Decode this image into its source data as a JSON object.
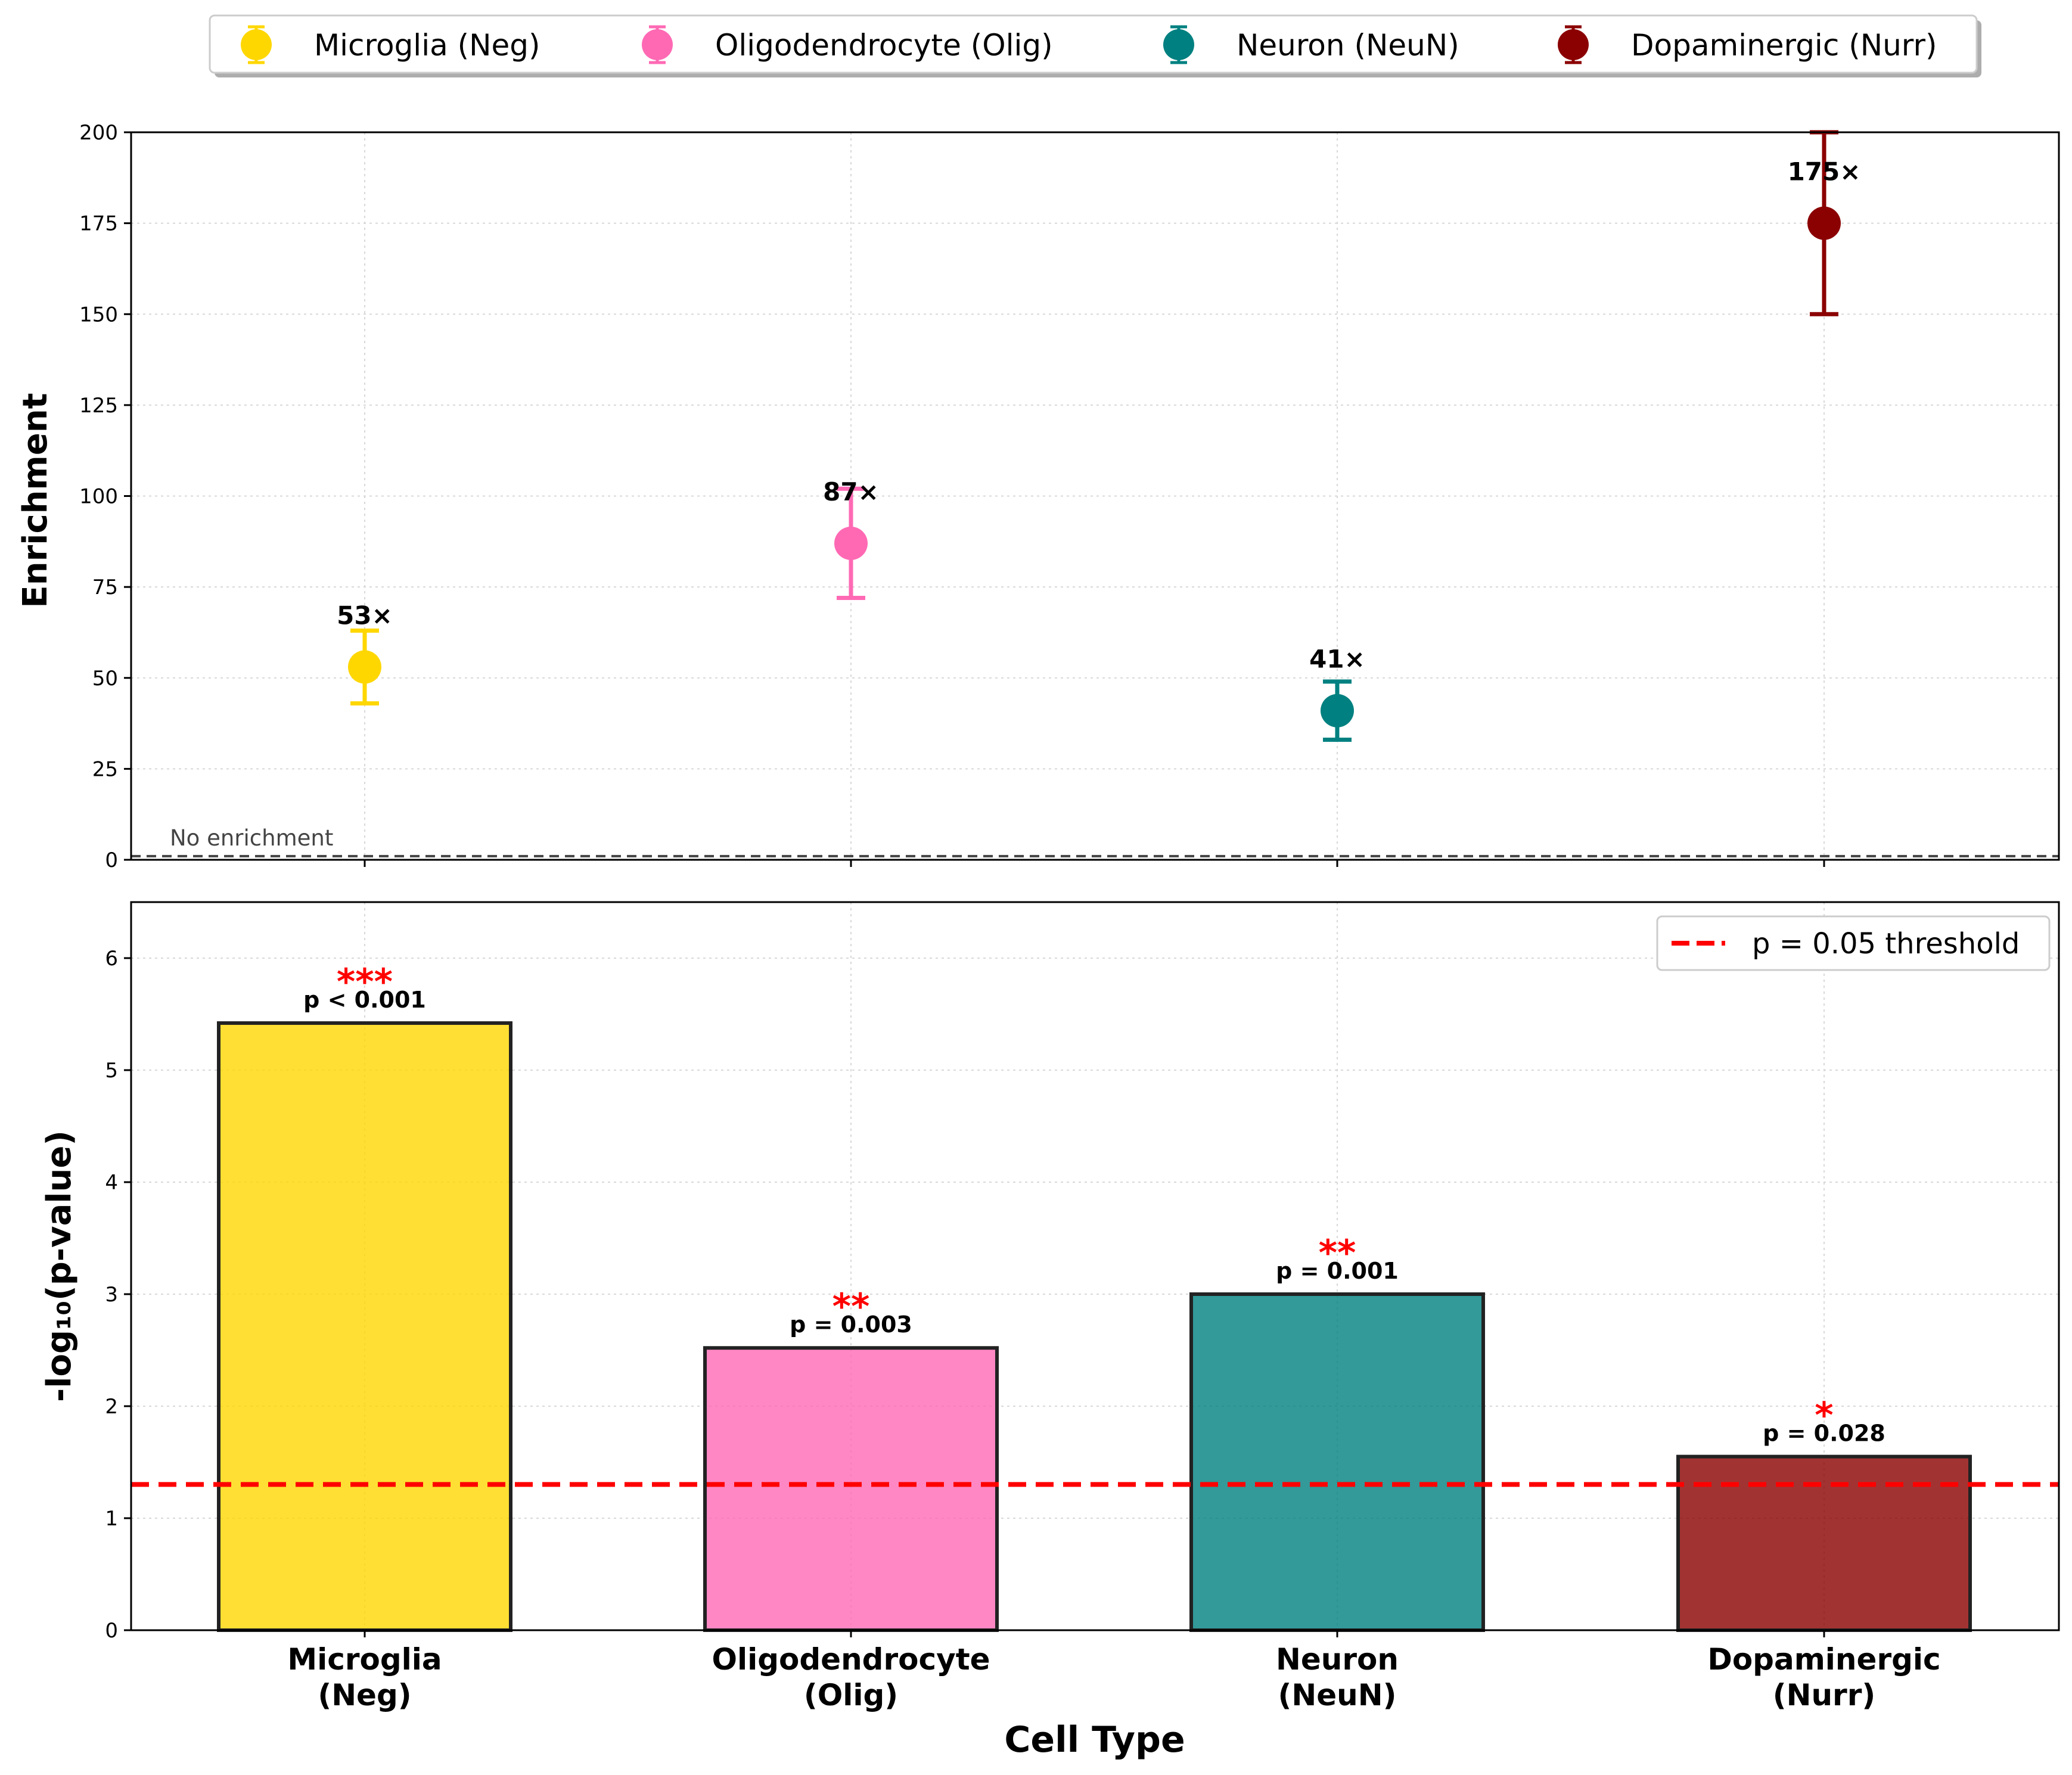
{
  "chart_data": [
    {
      "type": "scatter",
      "ylabel": "Enrichment",
      "ylim": [
        0,
        200
      ],
      "yticks": [
        0,
        25,
        50,
        75,
        100,
        125,
        150,
        175,
        200
      ],
      "categories": [
        "Microglia (Neg)",
        "Oligodendrocyte (Olig)",
        "Neuron (NeuN)",
        "Dopaminergic (Nurr)"
      ],
      "values": [
        53,
        87,
        41,
        175
      ],
      "error_low": [
        43,
        72,
        33,
        150
      ],
      "error_high": [
        63,
        102,
        49,
        200
      ],
      "labels": [
        "53×",
        "87×",
        "41×",
        "175×"
      ],
      "colors": [
        "#FFD700",
        "#FF69B4",
        "#008080",
        "#8B0000"
      ],
      "reference_line": {
        "value": 1,
        "label": "No enrichment"
      },
      "grid": true
    },
    {
      "type": "bar",
      "xlabel": "Cell Type",
      "ylabel": "-log₁₀(p-value)",
      "ylim": [
        0,
        6.5
      ],
      "yticks": [
        0,
        1,
        2,
        3,
        4,
        5,
        6
      ],
      "categories": [
        [
          "Microglia",
          "(Neg)"
        ],
        [
          "Oligodendrocyte",
          "(Olig)"
        ],
        [
          "Neuron",
          "(NeuN)"
        ],
        [
          "Dopaminergic",
          "(Nurr)"
        ]
      ],
      "values": [
        5.42,
        2.52,
        3.0,
        1.55
      ],
      "p_labels": [
        "p < 0.001",
        "p = 0.003",
        "p = 0.001",
        "p = 0.028"
      ],
      "stars": [
        "***",
        "**",
        "**",
        "*"
      ],
      "colors": [
        "#FFD700",
        "#FF69B4",
        "#008080",
        "#8B0000"
      ],
      "threshold": {
        "value": 1.30103,
        "label": "p = 0.05 threshold",
        "color": "#ff0000"
      },
      "grid": true
    }
  ]
}
